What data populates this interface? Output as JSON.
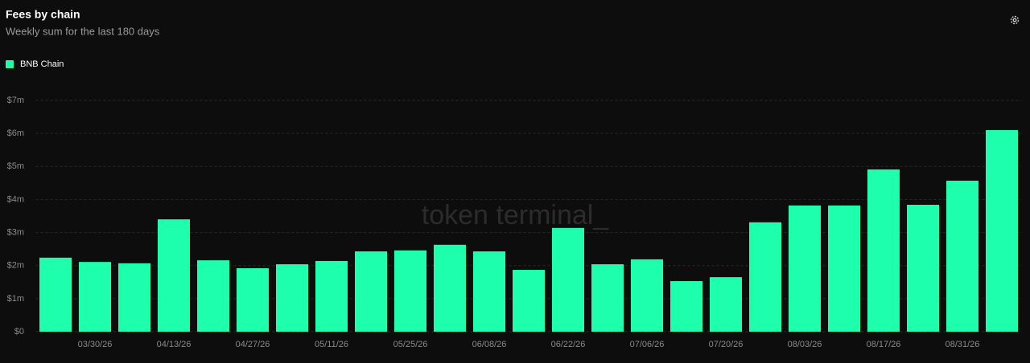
{
  "chart_data": {
    "type": "bar",
    "title": "Fees by chain",
    "subtitle": "Weekly sum for the last 180 days",
    "watermark": "token terminal_",
    "categories": [
      null,
      "03/30/26",
      null,
      "04/13/26",
      null,
      "04/27/26",
      null,
      "05/11/26",
      null,
      "05/25/26",
      null,
      "06/08/26",
      null,
      "06/22/26",
      null,
      "07/06/26",
      null,
      "07/20/26",
      null,
      "08/03/26",
      null,
      "08/17/26",
      null,
      "08/31/26",
      null
    ],
    "series": [
      {
        "name": "BNB Chain",
        "color": "#1effad",
        "values": [
          2.24,
          2.11,
          2.07,
          3.4,
          2.16,
          1.92,
          2.04,
          2.14,
          2.43,
          2.46,
          2.63,
          2.43,
          1.87,
          3.14,
          2.04,
          2.19,
          1.53,
          1.65,
          3.31,
          3.82,
          3.82,
          4.91,
          3.84,
          4.57,
          6.1
        ]
      }
    ],
    "ylim": [
      0,
      7
    ],
    "yticks": [
      {
        "value": 0,
        "label": "$0"
      },
      {
        "value": 1,
        "label": "$1m"
      },
      {
        "value": 2,
        "label": "$2m"
      },
      {
        "value": 3,
        "label": "$3m"
      },
      {
        "value": 4,
        "label": "$4m"
      },
      {
        "value": 5,
        "label": "$5m"
      },
      {
        "value": 6,
        "label": "$6m"
      },
      {
        "value": 7,
        "label": "$7m"
      }
    ],
    "grid": true,
    "legend": "top-left"
  }
}
